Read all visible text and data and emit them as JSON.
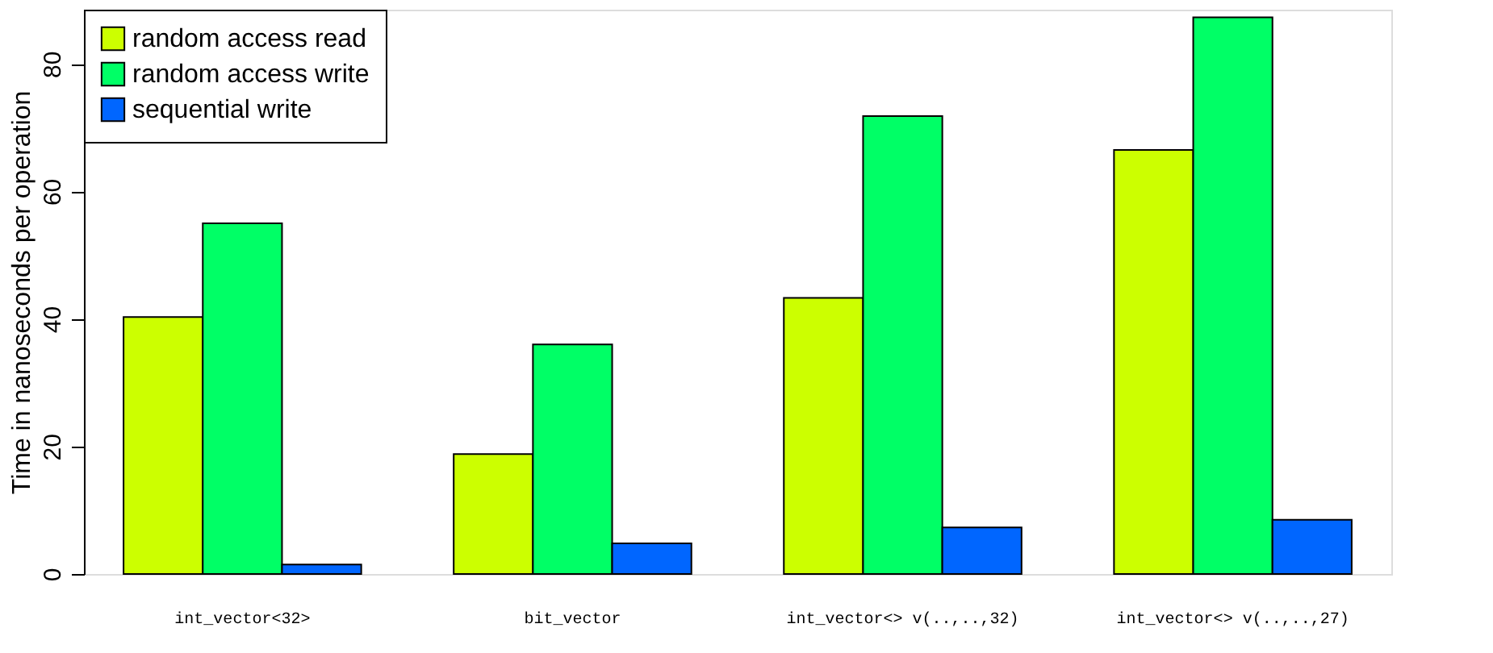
{
  "chart_data": {
    "type": "bar",
    "ylabel": "Time in nanoseconds per operation",
    "categories": [
      "int_vector<32>",
      "bit_vector",
      "int_vector<> v(..,..,32)",
      "int_vector<> v(..,..,27)"
    ],
    "series": [
      {
        "name": "random access read",
        "color": "#ccff00",
        "values": [
          40.3,
          18.8,
          43.3,
          66.5
        ]
      },
      {
        "name": "random access write",
        "color": "#00ff66",
        "values": [
          55,
          36,
          71.8,
          87.3
        ]
      },
      {
        "name": "sequential write",
        "color": "#0066ff",
        "values": [
          1.5,
          4.8,
          7.3,
          8.5
        ]
      }
    ],
    "ylim": [
      0,
      88.5
    ],
    "yticks": [
      0,
      20,
      40,
      60,
      80
    ],
    "grid": false,
    "legend": "top left"
  }
}
